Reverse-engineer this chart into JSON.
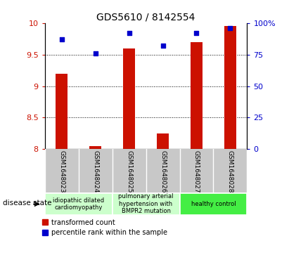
{
  "title": "GDS5610 / 8142554",
  "samples": [
    "GSM1648023",
    "GSM1648024",
    "GSM1648025",
    "GSM1648026",
    "GSM1648027",
    "GSM1648028"
  ],
  "transformed_count": [
    9.2,
    8.05,
    9.6,
    8.25,
    9.7,
    9.95
  ],
  "percentile_rank": [
    87,
    76,
    92,
    82,
    92,
    96
  ],
  "ylim_left": [
    8,
    10
  ],
  "ylim_right": [
    0,
    100
  ],
  "yticks_left": [
    8,
    8.5,
    9,
    9.5,
    10
  ],
  "yticks_right": [
    0,
    25,
    50,
    75,
    100
  ],
  "bar_color": "#cc1100",
  "dot_color": "#0000cc",
  "bar_bottom": 8,
  "disease_groups": [
    {
      "label": "idiopathic dilated\ncardiomyopathy",
      "indices": [
        0,
        1
      ],
      "color": "#ccffcc"
    },
    {
      "label": "pulmonary arterial\nhypertension with\nBMPR2 mutation",
      "indices": [
        2,
        3
      ],
      "color": "#ccffcc"
    },
    {
      "label": "healthy control",
      "indices": [
        4,
        5
      ],
      "color": "#44ee44"
    }
  ],
  "legend_red_label": "transformed count",
  "legend_blue_label": "percentile rank within the sample",
  "disease_state_label": "disease state",
  "ylabel_left_color": "#cc1100",
  "ylabel_right_color": "#0000cc",
  "grid_color": "#000000",
  "xlabel_area_color": "#c8c8c8",
  "xlabel_divider_color": "#ffffff"
}
